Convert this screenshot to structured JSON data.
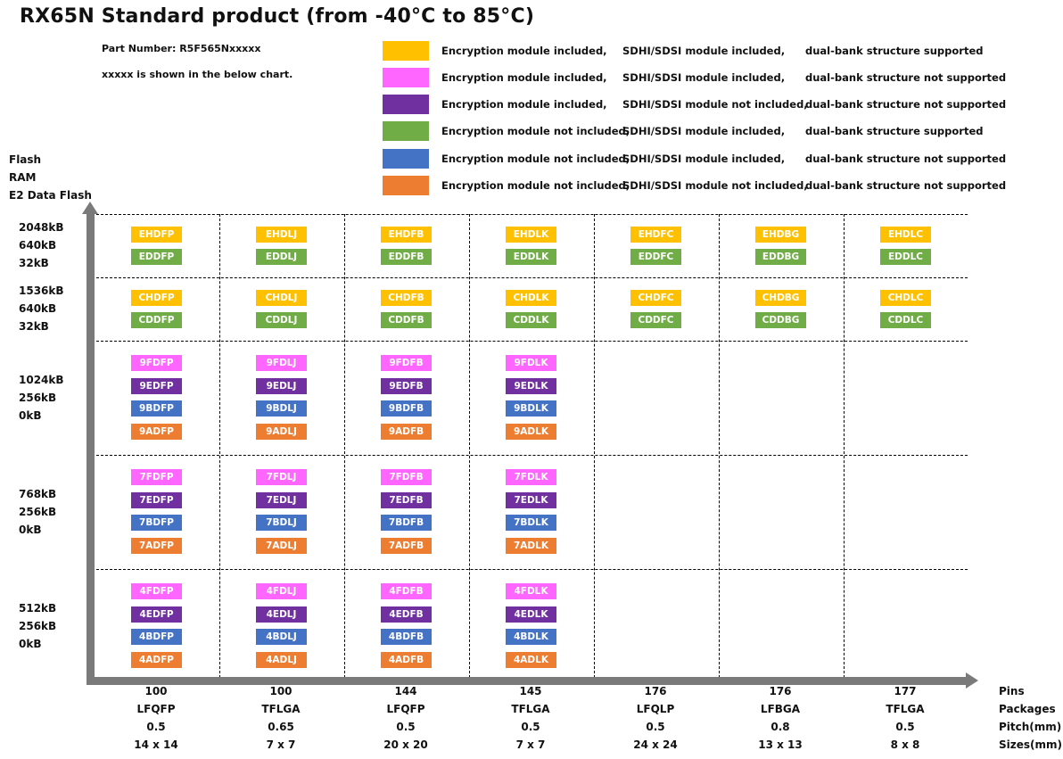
{
  "title": "RX65N  Standard product (from -40°C to 85°C)",
  "part_number": "Part Number: R5F565Nxxxxx",
  "part_note": "xxxxx is shown in the below chart.",
  "legend": [
    {
      "color": "#FFC000",
      "encryption": "Encryption module included,",
      "sdhi": "SDHI/SDSI module included,",
      "bank": "dual-bank structure supported"
    },
    {
      "color": "#FF66FF",
      "encryption": "Encryption module included,",
      "sdhi": "SDHI/SDSI module included,",
      "bank": "dual-bank structure not supported"
    },
    {
      "color": "#7030A0",
      "encryption": "Encryption module included,",
      "sdhi": "SDHI/SDSI module not included,",
      "bank": "dual-bank structure not supported"
    },
    {
      "color": "#70AD47",
      "encryption": "Encryption module not included,",
      "sdhi": "SDHI/SDSI module included,",
      "bank": "dual-bank structure supported"
    },
    {
      "color": "#4472C4",
      "encryption": "Encryption module not included,",
      "sdhi": "SDHI/SDSI module included,",
      "bank": "dual-bank structure not supported"
    },
    {
      "color": "#ED7D31",
      "encryption": "Encryption module not included,",
      "sdhi": "SDHI/SDSI module not included,",
      "bank": "dual-bank structure not supported"
    }
  ],
  "y_axis_labels": [
    "Flash",
    "RAM",
    "E2 Data Flash"
  ],
  "memory_rows": [
    {
      "flash": "2048kB",
      "ram": "640kB",
      "e2": "32kB"
    },
    {
      "flash": "1536kB",
      "ram": "640kB",
      "e2": "32kB"
    },
    {
      "flash": "1024kB",
      "ram": "256kB",
      "e2": "0kB"
    },
    {
      "flash": "768kB",
      "ram": "256kB",
      "e2": "0kB"
    },
    {
      "flash": "512kB",
      "ram": "256kB",
      "e2": "0kB"
    }
  ],
  "x_row_names": [
    "Pins",
    "Packages",
    "Pitch(mm)",
    "Sizes(mm)"
  ],
  "packages": [
    {
      "pins": "100",
      "package": "LFQFP",
      "pitch": "0.5",
      "size": "14 x 14"
    },
    {
      "pins": "100",
      "package": "TFLGA",
      "pitch": "0.65",
      "size": "7 x 7"
    },
    {
      "pins": "144",
      "package": "LFQFP",
      "pitch": "0.5",
      "size": "20 x 20"
    },
    {
      "pins": "145",
      "package": "TFLGA",
      "pitch": "0.5",
      "size": "7 x 7"
    },
    {
      "pins": "176",
      "package": "LFQLP",
      "pitch": "0.5",
      "size": "24 x 24"
    },
    {
      "pins": "176",
      "package": "LFBGA",
      "pitch": "0.8",
      "size": "13 x 13"
    },
    {
      "pins": "177",
      "package": "TFLGA",
      "pitch": "0.5",
      "size": "8 x 8"
    }
  ],
  "badges": [
    [
      [
        {
          "code": "EHDFP",
          "type": 0
        },
        {
          "code": "EDDFP",
          "type": 3
        }
      ],
      [
        {
          "code": "EHDLJ",
          "type": 0
        },
        {
          "code": "EDDLJ",
          "type": 3
        }
      ],
      [
        {
          "code": "EHDFB",
          "type": 0
        },
        {
          "code": "EDDFB",
          "type": 3
        }
      ],
      [
        {
          "code": "EHDLK",
          "type": 0
        },
        {
          "code": "EDDLK",
          "type": 3
        }
      ],
      [
        {
          "code": "EHDFC",
          "type": 0
        },
        {
          "code": "EDDFC",
          "type": 3
        }
      ],
      [
        {
          "code": "EHDBG",
          "type": 0
        },
        {
          "code": "EDDBG",
          "type": 3
        }
      ],
      [
        {
          "code": "EHDLC",
          "type": 0
        },
        {
          "code": "EDDLC",
          "type": 3
        }
      ]
    ],
    [
      [
        {
          "code": "CHDFP",
          "type": 0
        },
        {
          "code": "CDDFP",
          "type": 3
        }
      ],
      [
        {
          "code": "CHDLJ",
          "type": 0
        },
        {
          "code": "CDDLJ",
          "type": 3
        }
      ],
      [
        {
          "code": "CHDFB",
          "type": 0
        },
        {
          "code": "CDDFB",
          "type": 3
        }
      ],
      [
        {
          "code": "CHDLK",
          "type": 0
        },
        {
          "code": "CDDLK",
          "type": 3
        }
      ],
      [
        {
          "code": "CHDFC",
          "type": 0
        },
        {
          "code": "CDDFC",
          "type": 3
        }
      ],
      [
        {
          "code": "CHDBG",
          "type": 0
        },
        {
          "code": "CDDBG",
          "type": 3
        }
      ],
      [
        {
          "code": "CHDLC",
          "type": 0
        },
        {
          "code": "CDDLC",
          "type": 3
        }
      ]
    ],
    [
      [
        {
          "code": "9FDFP",
          "type": 1
        },
        {
          "code": "9EDFP",
          "type": 2
        },
        {
          "code": "9BDFP",
          "type": 4
        },
        {
          "code": "9ADFP",
          "type": 5
        }
      ],
      [
        {
          "code": "9FDLJ",
          "type": 1
        },
        {
          "code": "9EDLJ",
          "type": 2
        },
        {
          "code": "9BDLJ",
          "type": 4
        },
        {
          "code": "9ADLJ",
          "type": 5
        }
      ],
      [
        {
          "code": "9FDFB",
          "type": 1
        },
        {
          "code": "9EDFB",
          "type": 2
        },
        {
          "code": "9BDFB",
          "type": 4
        },
        {
          "code": "9ADFB",
          "type": 5
        }
      ],
      [
        {
          "code": "9FDLK",
          "type": 1
        },
        {
          "code": "9EDLK",
          "type": 2
        },
        {
          "code": "9BDLK",
          "type": 4
        },
        {
          "code": "9ADLK",
          "type": 5
        }
      ],
      [],
      [],
      []
    ],
    [
      [
        {
          "code": "7FDFP",
          "type": 1
        },
        {
          "code": "7EDFP",
          "type": 2
        },
        {
          "code": "7BDFP",
          "type": 4
        },
        {
          "code": "7ADFP",
          "type": 5
        }
      ],
      [
        {
          "code": "7FDLJ",
          "type": 1
        },
        {
          "code": "7EDLJ",
          "type": 2
        },
        {
          "code": "7BDLJ",
          "type": 4
        },
        {
          "code": "7ADLJ",
          "type": 5
        }
      ],
      [
        {
          "code": "7FDFB",
          "type": 1
        },
        {
          "code": "7EDFB",
          "type": 2
        },
        {
          "code": "7BDFB",
          "type": 4
        },
        {
          "code": "7ADFB",
          "type": 5
        }
      ],
      [
        {
          "code": "7FDLK",
          "type": 1
        },
        {
          "code": "7EDLK",
          "type": 2
        },
        {
          "code": "7BDLK",
          "type": 4
        },
        {
          "code": "7ADLK",
          "type": 5
        }
      ],
      [],
      [],
      []
    ],
    [
      [
        {
          "code": "4FDFP",
          "type": 1
        },
        {
          "code": "4EDFP",
          "type": 2
        },
        {
          "code": "4BDFP",
          "type": 4
        },
        {
          "code": "4ADFP",
          "type": 5
        }
      ],
      [
        {
          "code": "4FDLJ",
          "type": 1
        },
        {
          "code": "4EDLJ",
          "type": 2
        },
        {
          "code": "4BDLJ",
          "type": 4
        },
        {
          "code": "4ADLJ",
          "type": 5
        }
      ],
      [
        {
          "code": "4FDFB",
          "type": 1
        },
        {
          "code": "4EDFB",
          "type": 2
        },
        {
          "code": "4BDFB",
          "type": 4
        },
        {
          "code": "4ADFB",
          "type": 5
        }
      ],
      [
        {
          "code": "4FDLK",
          "type": 1
        },
        {
          "code": "4EDLK",
          "type": 2
        },
        {
          "code": "4BDLK",
          "type": 4
        },
        {
          "code": "4ADLK",
          "type": 5
        }
      ],
      [],
      [],
      []
    ]
  ]
}
